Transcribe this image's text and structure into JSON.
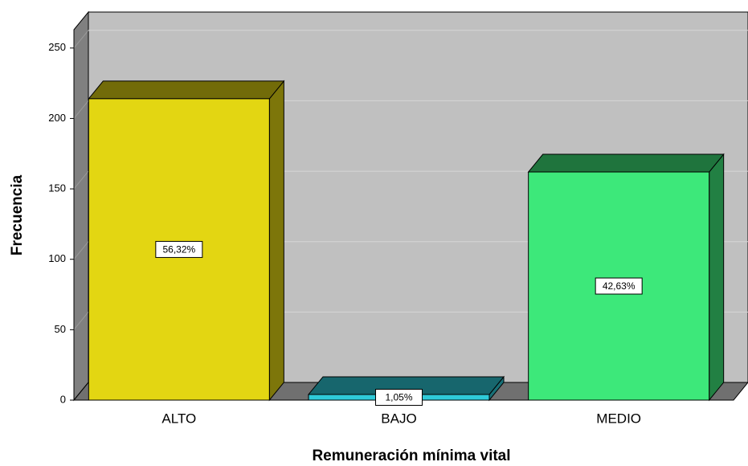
{
  "chart_data": {
    "type": "bar3d",
    "x_label": "Remuneración mínima vital",
    "y_label": "Frecuencia",
    "categories": [
      "ALTO",
      "BAJO",
      "MEDIO"
    ],
    "values": [
      214,
      4,
      162
    ],
    "percent_values": [
      56.32,
      1.05,
      42.63
    ],
    "percent_labels": [
      "56,32%",
      "1,05%",
      "42,63%"
    ],
    "colors": [
      "#e3d612",
      "#2ecbd9",
      "#3de87a"
    ],
    "ylim": [
      0,
      263
    ],
    "yticks": [
      0,
      50,
      100,
      150,
      200,
      250
    ],
    "grid": true
  }
}
